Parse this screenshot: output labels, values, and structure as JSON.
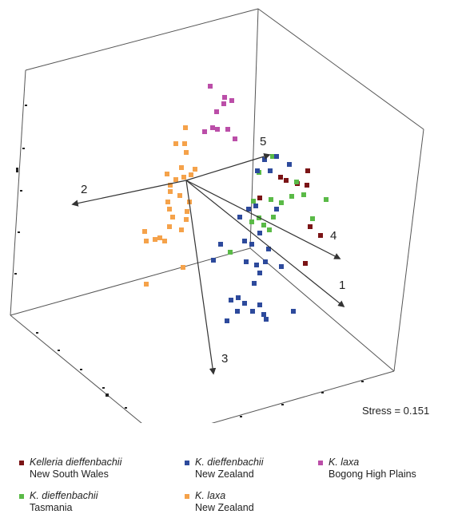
{
  "chart_data": {
    "type": "scatter",
    "projection": "3d-ordination",
    "stress_text": "Stress = 0.151",
    "vector_labels": [
      "1",
      "2",
      "3",
      "4",
      "5"
    ],
    "series": [
      {
        "name": "Kelleria dieffenbachii",
        "location": "New South Wales",
        "color": "#7b1416",
        "points": [
          [
            351,
            222
          ],
          [
            358,
            226
          ],
          [
            372,
            230
          ],
          [
            385,
            214
          ],
          [
            384,
            232
          ],
          [
            325,
            248
          ],
          [
            388,
            284
          ],
          [
            401,
            295
          ],
          [
            382,
            330
          ]
        ]
      },
      {
        "name": "K. dieffenbachii",
        "location": "Tasmania",
        "color": "#5aba47",
        "points": [
          [
            341,
            196
          ],
          [
            324,
            216
          ],
          [
            371,
            228
          ],
          [
            339,
            250
          ],
          [
            352,
            254
          ],
          [
            365,
            246
          ],
          [
            380,
            244
          ],
          [
            408,
            250
          ],
          [
            317,
            252
          ],
          [
            324,
            273
          ],
          [
            315,
            278
          ],
          [
            330,
            282
          ],
          [
            342,
            272
          ],
          [
            337,
            288
          ],
          [
            391,
            274
          ],
          [
            288,
            316
          ]
        ]
      },
      {
        "name": "K. dieffenbachii",
        "location": "New Zealand",
        "color": "#2d4a9c",
        "points": [
          [
            346,
            196
          ],
          [
            331,
            200
          ],
          [
            322,
            214
          ],
          [
            362,
            206
          ],
          [
            338,
            214
          ],
          [
            346,
            262
          ],
          [
            300,
            272
          ],
          [
            320,
            258
          ],
          [
            325,
            292
          ],
          [
            336,
            312
          ],
          [
            306,
            302
          ],
          [
            315,
            306
          ],
          [
            308,
            328
          ],
          [
            321,
            332
          ],
          [
            332,
            328
          ],
          [
            325,
            342
          ],
          [
            352,
            334
          ],
          [
            267,
            326
          ],
          [
            276,
            306
          ],
          [
            318,
            355
          ],
          [
            289,
            376
          ],
          [
            298,
            373
          ],
          [
            306,
            380
          ],
          [
            316,
            390
          ],
          [
            325,
            382
          ],
          [
            297,
            390
          ],
          [
            284,
            402
          ],
          [
            330,
            394
          ],
          [
            333,
            400
          ],
          [
            367,
            390
          ],
          [
            311,
            262
          ]
        ]
      },
      {
        "name": "K. laxa",
        "location": "New Zealand",
        "color": "#f5a24a",
        "points": [
          [
            232,
            160
          ],
          [
            220,
            180
          ],
          [
            231,
            180
          ],
          [
            233,
            191
          ],
          [
            227,
            210
          ],
          [
            244,
            212
          ],
          [
            209,
            218
          ],
          [
            220,
            225
          ],
          [
            213,
            232
          ],
          [
            230,
            222
          ],
          [
            239,
            219
          ],
          [
            213,
            240
          ],
          [
            225,
            245
          ],
          [
            210,
            253
          ],
          [
            237,
            253
          ],
          [
            234,
            265
          ],
          [
            212,
            262
          ],
          [
            233,
            275
          ],
          [
            216,
            272
          ],
          [
            212,
            284
          ],
          [
            227,
            288
          ],
          [
            181,
            290
          ],
          [
            183,
            302
          ],
          [
            194,
            300
          ],
          [
            206,
            302
          ],
          [
            200,
            298
          ],
          [
            229,
            335
          ],
          [
            183,
            356
          ]
        ]
      },
      {
        "name": "K. laxa",
        "location": "Bogong High Plains",
        "color": "#bb4ea8",
        "points": [
          [
            263,
            108
          ],
          [
            281,
            122
          ],
          [
            290,
            126
          ],
          [
            280,
            130
          ],
          [
            271,
            140
          ],
          [
            266,
            160
          ],
          [
            256,
            165
          ],
          [
            272,
            162
          ],
          [
            285,
            162
          ],
          [
            294,
            174
          ]
        ]
      }
    ],
    "vectors": [
      {
        "label": "1",
        "tip": [
          430,
          384
        ]
      },
      {
        "label": "2",
        "tip": [
          91,
          256
        ]
      },
      {
        "label": "3",
        "tip": [
          267,
          468
        ]
      },
      {
        "label": "4",
        "tip": [
          425,
          324
        ]
      },
      {
        "label": "5",
        "tip": [
          337,
          194
        ]
      }
    ]
  }
}
